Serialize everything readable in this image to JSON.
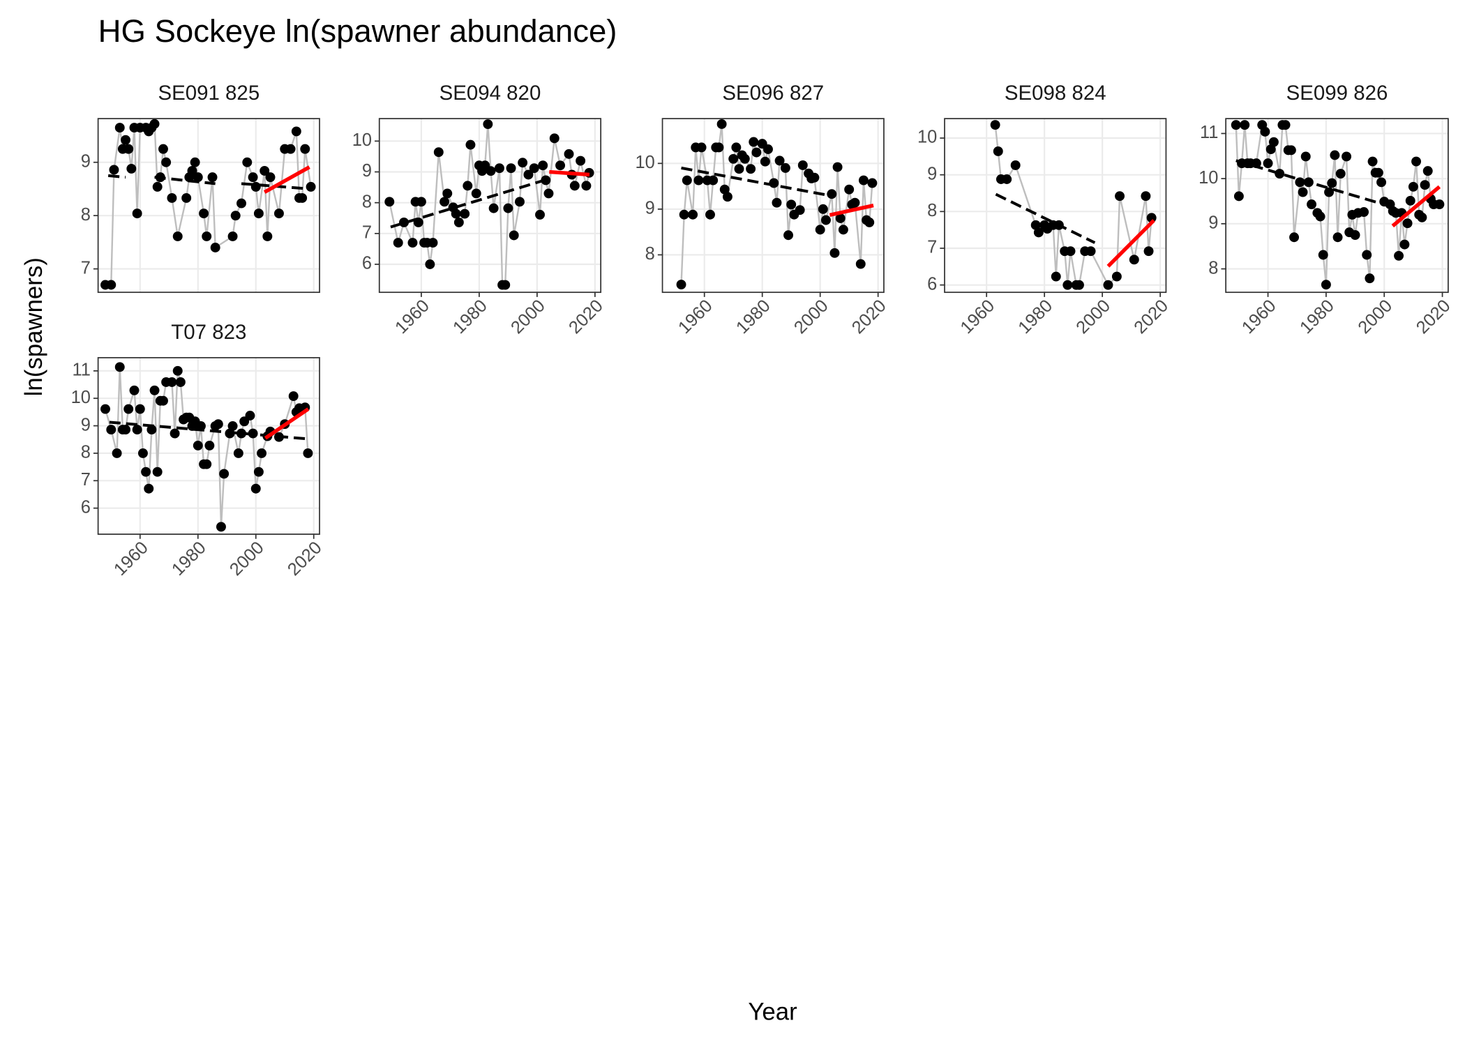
{
  "chart_data": {
    "type": "facet-scatter",
    "title": "HG Sockeye ln(spawner abundance)",
    "x_label": "Year",
    "y_label": "ln(spawners)",
    "xlim": [
      1945.5,
      2022
    ],
    "xticks": [
      1960,
      1980,
      2000,
      2020
    ],
    "grid": true,
    "point_color": "#000000",
    "line_color": "#bebebe",
    "trend_color": "#000000",
    "recent_color": "#ff0000",
    "panels": [
      {
        "title": "SE091 825",
        "ylim": [
          6.56,
          9.82
        ],
        "yticks": [
          7,
          8,
          9
        ],
        "x": [
          1948,
          1950,
          1951,
          1953,
          1954,
          1955,
          1956,
          1957,
          1958,
          1959,
          1960,
          1962,
          1963,
          1964,
          1965,
          1966,
          1967,
          1968,
          1969,
          1971,
          1973,
          1976,
          1977,
          1978,
          1979,
          1980,
          1982,
          1983,
          1985,
          1986,
          1992,
          1993,
          1995,
          1997,
          1999,
          2000,
          2001,
          2003,
          2004,
          2005,
          2008,
          2010,
          2012,
          2014,
          2015,
          2016,
          2017,
          2019
        ],
        "y": [
          6.7,
          6.7,
          8.86,
          9.65,
          9.25,
          9.42,
          9.25,
          8.88,
          9.65,
          8.04,
          9.65,
          9.65,
          9.58,
          9.65,
          9.72,
          8.54,
          8.72,
          9.25,
          9.0,
          8.33,
          7.61,
          8.33,
          8.72,
          8.84,
          9.0,
          8.72,
          8.04,
          7.61,
          8.72,
          7.4,
          7.61,
          8.0,
          8.23,
          9.0,
          8.72,
          8.54,
          8.04,
          8.84,
          7.61,
          8.72,
          8.04,
          9.25,
          9.25,
          9.58,
          8.33,
          8.33,
          9.25,
          8.54
        ],
        "trend": {
          "x": [
            1949,
            1955,
            null,
            1965,
            1986,
            null,
            1995,
            2019
          ],
          "y": [
            8.75,
            8.72,
            null,
            8.72,
            8.6,
            null,
            8.6,
            8.5
          ]
        },
        "recent": {
          "x": [
            2003,
            2018.5
          ],
          "y": [
            8.44,
            8.91
          ]
        }
      },
      {
        "title": "SE094 820",
        "ylim": [
          5.09,
          10.73
        ],
        "yticks": [
          6,
          7,
          8,
          9,
          10
        ],
        "x": [
          1949,
          1952,
          1954,
          1957,
          1958,
          1959,
          1960,
          1961,
          1962,
          1963,
          1964,
          1966,
          1968,
          1969,
          1971,
          1972,
          1973,
          1975,
          1976,
          1977,
          1979,
          1980,
          1981,
          1982,
          1983,
          1984,
          1985,
          1987,
          1988,
          1989,
          1990,
          1991,
          1992,
          1994,
          1995,
          1997,
          1999,
          2001,
          2002,
          2003,
          2004,
          2006,
          2008,
          2011,
          2012,
          2013,
          2015,
          2017,
          2018
        ],
        "y": [
          8.03,
          6.7,
          7.36,
          6.7,
          8.03,
          7.36,
          8.03,
          6.7,
          6.7,
          6.0,
          6.7,
          9.64,
          8.03,
          8.3,
          7.85,
          7.64,
          7.36,
          7.64,
          8.55,
          9.88,
          8.3,
          9.21,
          9.03,
          9.21,
          10.55,
          9.03,
          7.82,
          9.12,
          5.33,
          5.33,
          7.82,
          9.12,
          6.94,
          8.03,
          9.3,
          8.91,
          9.12,
          7.61,
          9.21,
          8.73,
          8.3,
          10.09,
          9.21,
          9.58,
          8.91,
          8.55,
          9.36,
          8.55,
          8.97
        ],
        "trend": {
          "x": [
            1949.4,
            2003.6
          ],
          "y": [
            7.21,
            8.76
          ]
        },
        "recent": {
          "x": [
            2004.2,
            2018.1
          ],
          "y": [
            9.0,
            8.91
          ]
        }
      },
      {
        "title": "SE096 827",
        "ylim": [
          7.18,
          10.98
        ],
        "yticks": [
          8,
          9,
          10
        ],
        "x": [
          1952,
          1953,
          1954,
          1956,
          1957,
          1958,
          1959,
          1961,
          1962,
          1963,
          1964,
          1965,
          1966,
          1967,
          1968,
          1970,
          1971,
          1972,
          1973,
          1974,
          1976,
          1977,
          1978,
          1980,
          1981,
          1982,
          1984,
          1985,
          1986,
          1988,
          1989,
          1990,
          1991,
          1993,
          1994,
          1996,
          1997,
          1998,
          2000,
          2001,
          2002,
          2004,
          2005,
          2006,
          2007,
          2008,
          2010,
          2011,
          2012,
          2014,
          2015,
          2016,
          2017,
          2018
        ],
        "y": [
          7.35,
          8.88,
          9.63,
          8.88,
          10.35,
          9.63,
          10.35,
          9.63,
          8.88,
          9.63,
          10.35,
          10.35,
          10.86,
          9.43,
          9.27,
          10.1,
          10.35,
          9.88,
          10.18,
          10.1,
          9.88,
          10.47,
          10.24,
          10.43,
          10.04,
          10.31,
          9.57,
          9.14,
          10.06,
          9.9,
          8.43,
          9.1,
          8.88,
          8.98,
          9.96,
          9.78,
          9.67,
          9.69,
          8.55,
          9.0,
          8.76,
          9.33,
          8.04,
          9.92,
          8.8,
          8.55,
          9.43,
          9.1,
          9.14,
          7.8,
          9.63,
          8.76,
          8.71,
          9.57
        ],
        "trend": {
          "x": [
            1952,
            2003.9
          ],
          "y": [
            9.9,
            9.29
          ]
        },
        "recent": {
          "x": [
            2003.3,
            2018.4
          ],
          "y": [
            8.87,
            9.08
          ]
        }
      },
      {
        "title": "SE098 824",
        "ylim": [
          5.8,
          10.53
        ],
        "yticks": [
          6,
          7,
          8,
          9,
          10
        ],
        "x": [
          1963,
          1964,
          1965,
          1967,
          1970,
          1977,
          1978,
          1980,
          1981,
          1983,
          1984,
          1985,
          1987,
          1988,
          1989,
          1991,
          1992,
          1994,
          1996,
          2002,
          2005,
          2006,
          2011,
          2015,
          2016,
          2017
        ],
        "y": [
          10.36,
          9.64,
          8.88,
          8.88,
          9.26,
          7.63,
          7.43,
          7.63,
          7.53,
          7.63,
          6.23,
          7.63,
          6.92,
          6.0,
          6.92,
          6.0,
          6.0,
          6.92,
          6.92,
          6.0,
          6.23,
          8.42,
          6.69,
          8.42,
          6.92,
          7.83
        ],
        "trend": {
          "x": [
            1963.2,
            1997.4
          ],
          "y": [
            8.47,
            7.15
          ]
        },
        "recent": {
          "x": [
            2002,
            2017.8
          ],
          "y": [
            6.51,
            7.76
          ]
        }
      },
      {
        "title": "SE099 826",
        "ylim": [
          7.48,
          11.33
        ],
        "yticks": [
          8,
          9,
          10,
          11
        ],
        "x": [
          1949,
          1950,
          1951,
          1952,
          1953,
          1954,
          1956,
          1958,
          1959,
          1960,
          1961,
          1962,
          1964,
          1965,
          1966,
          1967,
          1968,
          1969,
          1971,
          1972,
          1973,
          1974,
          1975,
          1977,
          1978,
          1979,
          1980,
          1981,
          1982,
          1983,
          1984,
          1985,
          1987,
          1988,
          1989,
          1990,
          1991,
          1993,
          1994,
          1995,
          1996,
          1997,
          1998,
          1999,
          2000,
          2002,
          2003,
          2004,
          2005,
          2006,
          2007,
          2008,
          2009,
          2010,
          2011,
          2012,
          2013,
          2014,
          2015,
          2016,
          2017,
          2019
        ],
        "y": [
          11.19,
          9.61,
          10.34,
          11.19,
          10.34,
          10.34,
          10.34,
          11.19,
          11.04,
          10.34,
          10.65,
          10.81,
          10.11,
          11.19,
          11.19,
          10.63,
          10.63,
          8.7,
          9.92,
          9.7,
          10.49,
          9.92,
          9.43,
          9.24,
          9.16,
          8.31,
          7.65,
          9.7,
          9.9,
          10.52,
          8.7,
          10.11,
          10.49,
          8.81,
          9.2,
          8.75,
          9.24,
          9.26,
          8.31,
          7.79,
          10.38,
          10.13,
          10.13,
          9.92,
          9.49,
          9.43,
          9.28,
          9.24,
          8.29,
          9.24,
          8.54,
          9.01,
          9.51,
          9.82,
          10.38,
          9.2,
          9.14,
          9.86,
          10.17,
          9.55,
          9.43,
          9.43
        ],
        "trend": {
          "x": [
            1949,
            2002.9
          ],
          "y": [
            10.4,
            9.37
          ]
        },
        "recent": {
          "x": [
            2002.9,
            2019
          ],
          "y": [
            8.95,
            9.82
          ]
        }
      },
      {
        "title": "T07 823",
        "ylim": [
          5.05,
          11.48
        ],
        "yticks": [
          6,
          7,
          8,
          9,
          10,
          11
        ],
        "x": [
          1948,
          1950,
          1952,
          1953,
          1954,
          1955,
          1956,
          1958,
          1959,
          1960,
          1961,
          1962,
          1963,
          1964,
          1965,
          1966,
          1967,
          1968,
          1969,
          1971,
          1972,
          1973,
          1974,
          1975,
          1976,
          1977,
          1978,
          1979,
          1980,
          1981,
          1982,
          1983,
          1984,
          1986,
          1987,
          1988,
          1989,
          1991,
          1992,
          1994,
          1995,
          1996,
          1998,
          1999,
          2000,
          2001,
          2002,
          2004,
          2005,
          2008,
          2010,
          2013,
          2014,
          2015,
          2017,
          2018
        ],
        "y": [
          9.61,
          8.86,
          8.0,
          11.14,
          8.86,
          8.86,
          9.61,
          10.29,
          8.86,
          9.61,
          8.0,
          7.32,
          6.71,
          8.86,
          10.29,
          7.32,
          9.91,
          9.91,
          10.59,
          10.59,
          8.72,
          11.0,
          10.59,
          9.23,
          9.3,
          9.3,
          8.99,
          9.16,
          8.28,
          8.99,
          7.6,
          7.6,
          8.28,
          8.99,
          9.06,
          5.32,
          7.25,
          8.72,
          8.99,
          8.0,
          8.72,
          9.16,
          9.37,
          8.72,
          6.71,
          7.32,
          8.0,
          8.62,
          8.79,
          8.59,
          9.06,
          10.08,
          9.5,
          9.64,
          9.67,
          8.0
        ],
        "trend": {
          "x": [
            1949.4,
            2018.1
          ],
          "y": [
            9.13,
            8.52
          ]
        },
        "recent": {
          "x": [
            2003.3,
            2018.1
          ],
          "y": [
            8.55,
            9.61
          ]
        }
      }
    ]
  }
}
